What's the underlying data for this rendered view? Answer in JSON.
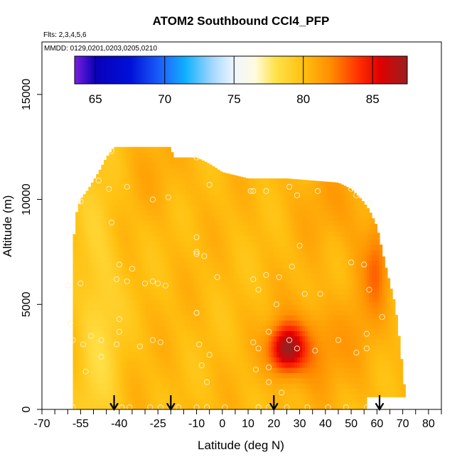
{
  "chart_data": {
    "type": "heatmap",
    "title": "ATOM2 Southbound CCl4_PFP",
    "subtitle_flights": "Flts: 2,3,4,5,6",
    "subtitle_dates": "MMDD: 0129,0201,0203,0205,0210",
    "xlabel": "Latitude (deg N)",
    "ylabel": "Altitude (m)",
    "xlim": [
      -70,
      85
    ],
    "ylim": [
      0,
      17500
    ],
    "x_ticks": [
      -70,
      -65,
      -60,
      -55,
      -50,
      -45,
      -40,
      -35,
      -30,
      -25,
      -20,
      -15,
      -10,
      -5,
      0,
      5,
      10,
      15,
      20,
      25,
      30,
      35,
      40,
      45,
      50,
      55,
      60,
      65,
      70,
      75,
      80,
      85
    ],
    "x_tick_labels": [
      "-70",
      "-55",
      "-40",
      "-25",
      "-10",
      "0",
      "10",
      "20",
      "30",
      "40",
      "50",
      "60",
      "70",
      "80"
    ],
    "x_tick_label_values": [
      -70,
      -55,
      -40,
      -25,
      -10,
      0,
      10,
      20,
      30,
      40,
      50,
      60,
      70,
      80
    ],
    "y_ticks": [
      0,
      5000,
      10000,
      15000
    ],
    "y_tick_labels": [
      "0",
      "5000",
      "10000",
      "15000"
    ],
    "colorbar": {
      "range": [
        63.5,
        87.5
      ],
      "ticks": [
        65,
        70,
        75,
        80,
        85
      ],
      "tick_labels": [
        "65",
        "70",
        "75",
        "80",
        "85"
      ],
      "stops": [
        {
          "value": 63.5,
          "color": "#7b1fe0"
        },
        {
          "value": 65.0,
          "color": "#0a00b8"
        },
        {
          "value": 67.5,
          "color": "#0010d8"
        },
        {
          "value": 70.0,
          "color": "#1e6cff"
        },
        {
          "value": 71.5,
          "color": "#10b0ff"
        },
        {
          "value": 73.5,
          "color": "#a8d8ff"
        },
        {
          "value": 75.0,
          "color": "#eef6ff"
        },
        {
          "value": 76.5,
          "color": "#fffbe0"
        },
        {
          "value": 78.0,
          "color": "#ffe24a"
        },
        {
          "value": 80.0,
          "color": "#ffc010"
        },
        {
          "value": 82.0,
          "color": "#ff8c00"
        },
        {
          "value": 84.0,
          "color": "#ff3000"
        },
        {
          "value": 85.5,
          "color": "#e00000"
        },
        {
          "value": 87.5,
          "color": "#9a2020"
        }
      ]
    },
    "field_envelope": [
      {
        "x": -58,
        "top": 7500
      },
      {
        "x": -57,
        "top": 9200
      },
      {
        "x": -55,
        "top": 10000
      },
      {
        "x": -52,
        "top": 10500
      },
      {
        "x": -48,
        "top": 11300
      },
      {
        "x": -45,
        "top": 12000
      },
      {
        "x": -42,
        "top": 12500
      },
      {
        "x": -20,
        "top": 12500
      },
      {
        "x": -19,
        "top": 12000
      },
      {
        "x": -10,
        "top": 12000
      },
      {
        "x": -5,
        "top": 11700
      },
      {
        "x": 0,
        "top": 11300
      },
      {
        "x": 10,
        "top": 11000
      },
      {
        "x": 25,
        "top": 11000
      },
      {
        "x": 45,
        "top": 10800
      },
      {
        "x": 50,
        "top": 10500
      },
      {
        "x": 54,
        "top": 10000
      },
      {
        "x": 57,
        "top": 9500
      },
      {
        "x": 60,
        "top": 8700
      },
      {
        "x": 63,
        "top": 7000
      },
      {
        "x": 65,
        "top": 6000
      },
      {
        "x": 67,
        "top": 5000
      },
      {
        "x": 69,
        "top": 3000
      },
      {
        "x": 71,
        "top": 600
      }
    ],
    "field_bottom": 0,
    "field_bottom_gap": {
      "x_from": 56,
      "x_to": 71,
      "bottom": 600
    },
    "field_background_value": 80.2,
    "field_anomalies": [
      {
        "x": 25,
        "y": 2900,
        "sx": 4.5,
        "sy": 750,
        "amp": 6.5
      },
      {
        "x": 34,
        "y": 3000,
        "sx": 9,
        "sy": 1400,
        "amp": 2.0
      },
      {
        "x": 60,
        "y": 7000,
        "sx": 3,
        "sy": 1500,
        "amp": 1.8
      },
      {
        "x": 55,
        "y": 6000,
        "sx": 6,
        "sy": 3000,
        "amp": 1.0
      },
      {
        "x": -48,
        "y": 4000,
        "sx": 6,
        "sy": 5000,
        "amp": -1.6
      },
      {
        "x": 40,
        "y": 10000,
        "sx": 10,
        "sy": 1500,
        "amp": 0.8
      },
      {
        "x": -25,
        "y": 11500,
        "sx": 10,
        "sy": 1500,
        "amp": 0.5
      }
    ],
    "sample_points": [
      [
        -43,
        12300
      ],
      [
        -48,
        10900
      ],
      [
        -44,
        10500
      ],
      [
        -37,
        10600
      ],
      [
        -27,
        10000
      ],
      [
        -21,
        10100
      ],
      [
        -10,
        12000
      ],
      [
        -5,
        10700
      ],
      [
        11,
        10400
      ],
      [
        12,
        10400
      ],
      [
        17,
        10400
      ],
      [
        26,
        10600
      ],
      [
        29,
        10200
      ],
      [
        37,
        10400
      ],
      [
        50,
        10500
      ],
      [
        52,
        10200
      ],
      [
        57,
        9800
      ],
      [
        -55,
        9900
      ],
      [
        -43,
        8900
      ],
      [
        -10,
        8200
      ],
      [
        -10,
        7500
      ],
      [
        -10,
        7400
      ],
      [
        -7,
        7300
      ],
      [
        30,
        7800
      ],
      [
        -40,
        6900
      ],
      [
        -35,
        6700
      ],
      [
        -41,
        6200
      ],
      [
        -37,
        6100
      ],
      [
        -30,
        6000
      ],
      [
        -27,
        6100
      ],
      [
        -25,
        6000
      ],
      [
        -22,
        5900
      ],
      [
        -60,
        5900
      ],
      [
        -55,
        6000
      ],
      [
        -2,
        6300
      ],
      [
        12,
        6200
      ],
      [
        14,
        5700
      ],
      [
        17,
        6400
      ],
      [
        22,
        6300
      ],
      [
        27,
        6800
      ],
      [
        32,
        5500
      ],
      [
        38,
        5500
      ],
      [
        50,
        7000
      ],
      [
        55,
        6900
      ],
      [
        57,
        5700
      ],
      [
        -40,
        4300
      ],
      [
        -10,
        4600
      ],
      [
        -10,
        4600
      ],
      [
        -40,
        3700
      ],
      [
        -51,
        3500
      ],
      [
        -58,
        3300
      ],
      [
        -54,
        3100
      ],
      [
        -47,
        3300
      ],
      [
        -41,
        3100
      ],
      [
        -32,
        3000
      ],
      [
        -27,
        3300
      ],
      [
        -24,
        3200
      ],
      [
        -9,
        3100
      ],
      [
        -5,
        2600
      ],
      [
        -8,
        2100
      ],
      [
        -6,
        1300
      ],
      [
        12,
        3200
      ],
      [
        14,
        2900
      ],
      [
        18,
        3700
      ],
      [
        21,
        5000
      ],
      [
        26,
        3300
      ],
      [
        29,
        2900
      ],
      [
        36,
        2800
      ],
      [
        45,
        3300
      ],
      [
        52,
        2700
      ],
      [
        56,
        3600
      ],
      [
        56,
        2900
      ],
      [
        62,
        4400
      ],
      [
        13,
        1900
      ],
      [
        18,
        2000
      ],
      [
        18,
        1300
      ],
      [
        23,
        800
      ],
      [
        -58,
        100
      ],
      [
        -39,
        100
      ],
      [
        -36,
        100
      ],
      [
        -28,
        100
      ],
      [
        -24,
        100
      ],
      [
        -17,
        100
      ],
      [
        -10,
        100
      ],
      [
        -6,
        100
      ],
      [
        1,
        100
      ],
      [
        14,
        100
      ],
      [
        18,
        100
      ],
      [
        25,
        100
      ],
      [
        33,
        100
      ],
      [
        41,
        100
      ],
      [
        48,
        100
      ],
      [
        56,
        100
      ],
      [
        64,
        100
      ],
      [
        -59,
        4100
      ],
      [
        -53,
        1800
      ],
      [
        -47,
        2500
      ]
    ],
    "arrow_markers": [
      -42,
      -20,
      20,
      61
    ]
  }
}
